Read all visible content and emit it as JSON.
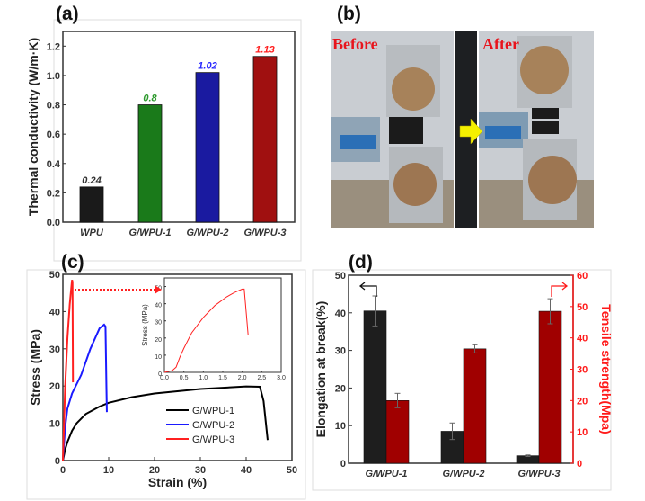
{
  "panels": {
    "a": "(a)",
    "b": "(b)",
    "c": "(c)",
    "d": "(d)"
  },
  "photo": {
    "before_label": "Before",
    "after_label": "After",
    "arrow_color": "#f5f000"
  },
  "chart_data": [
    {
      "id": "a",
      "type": "bar",
      "categories": [
        "WPU",
        "G/WPU-1",
        "G/WPU-2",
        "G/WPU-3"
      ],
      "values": [
        0.24,
        0.8,
        1.02,
        1.13
      ],
      "value_labels": [
        "0.24",
        "0.8",
        "1.02",
        "1.13"
      ],
      "colors": [
        "#1a1a1a",
        "#1a7a1a",
        "#1a1aa0",
        "#a01010"
      ],
      "label_colors": [
        "#333333",
        "#2e9a2e",
        "#2a2aff",
        "#ff2020"
      ],
      "xlabel": "",
      "ylabel": "Thermal conductivity (W/m·K)",
      "ylim": [
        0,
        1.3
      ],
      "yticks": [
        "0.0",
        "0.2",
        "0.4",
        "0.6",
        "0.8",
        "1.0",
        "1.2"
      ]
    },
    {
      "id": "c",
      "type": "line",
      "xlabel": "Strain (%)",
      "ylabel": "Stress (MPa)",
      "xlim": [
        0,
        50
      ],
      "ylim": [
        0,
        50
      ],
      "xticks": [
        "0",
        "10",
        "20",
        "30",
        "40",
        "50"
      ],
      "yticks": [
        "0",
        "10",
        "20",
        "30",
        "40",
        "50"
      ],
      "legend_position": "lower-right",
      "series": [
        {
          "name": "G/WPU-1",
          "color": "#000000",
          "points": [
            [
              0,
              0
            ],
            [
              0.5,
              3
            ],
            [
              1,
              5
            ],
            [
              2,
              8
            ],
            [
              3,
              10
            ],
            [
              5,
              12.5
            ],
            [
              8,
              14.5
            ],
            [
              10,
              15.5
            ],
            [
              15,
              17
            ],
            [
              20,
              18
            ],
            [
              30,
              19.2
            ],
            [
              40,
              19.9
            ],
            [
              43,
              19.8
            ],
            [
              43.8,
              16
            ],
            [
              44.7,
              5.5
            ]
          ]
        },
        {
          "name": "G/WPU-2",
          "color": "#1a1aff",
          "points": [
            [
              0,
              0
            ],
            [
              0.5,
              9
            ],
            [
              1,
              14
            ],
            [
              2,
              18
            ],
            [
              4,
              23
            ],
            [
              6,
              30
            ],
            [
              8,
              35.5
            ],
            [
              9,
              36.5
            ],
            [
              9.3,
              36
            ],
            [
              9.5,
              20
            ],
            [
              9.6,
              13
            ]
          ]
        },
        {
          "name": "G/WPU-3",
          "color": "#ff2020",
          "points": [
            [
              0,
              0
            ],
            [
              0.5,
              20
            ],
            [
              1,
              33
            ],
            [
              1.5,
              42
            ],
            [
              2,
              48.5
            ],
            [
              2.1,
              48
            ],
            [
              2.2,
              21
            ]
          ]
        }
      ],
      "inset": {
        "ylabel": "Stress (MPa)",
        "xlim": [
          0,
          3
        ],
        "ylim": [
          0,
          55
        ],
        "xticks": [
          "0.0",
          "0.5",
          "1.0",
          "1.5",
          "2.0",
          "2.5",
          "3.0"
        ],
        "yticks": [
          "0",
          "10",
          "20",
          "30",
          "40",
          "50"
        ],
        "series": [
          {
            "name": "G/WPU-3",
            "color": "#ff2020",
            "points": [
              [
                0,
                0
              ],
              [
                0.2,
                1
              ],
              [
                0.3,
                3
              ],
              [
                0.4,
                9
              ],
              [
                0.5,
                14
              ],
              [
                0.7,
                23
              ],
              [
                1,
                32
              ],
              [
                1.3,
                39
              ],
              [
                1.6,
                44
              ],
              [
                1.8,
                46.5
              ],
              [
                2.0,
                48.5
              ],
              [
                2.05,
                48.5
              ],
              [
                2.15,
                22
              ]
            ]
          }
        ]
      }
    },
    {
      "id": "d",
      "type": "bar",
      "categories": [
        "G/WPU-1",
        "G/WPU-2",
        "G/WPU-3"
      ],
      "ylabel": "Elongation at break(%)",
      "y2label": "Tensile strength(Mpa)",
      "ylim": [
        0,
        50
      ],
      "y2lim": [
        0,
        60
      ],
      "yticks": [
        "0",
        "10",
        "20",
        "30",
        "40",
        "50"
      ],
      "y2ticks": [
        "0",
        "10",
        "20",
        "30",
        "40",
        "50",
        "60"
      ],
      "y2_color": "#ff1a1a",
      "series": [
        {
          "axis": "left",
          "color": "#1e1e1e",
          "values": [
            40.5,
            8.5,
            2.0
          ],
          "errors": [
            4.0,
            2.2,
            0.2
          ]
        },
        {
          "axis": "right",
          "color": "#a00000",
          "values": [
            20.0,
            36.5,
            48.5
          ],
          "errors": [
            2.3,
            1.3,
            4.0
          ]
        }
      ]
    }
  ]
}
